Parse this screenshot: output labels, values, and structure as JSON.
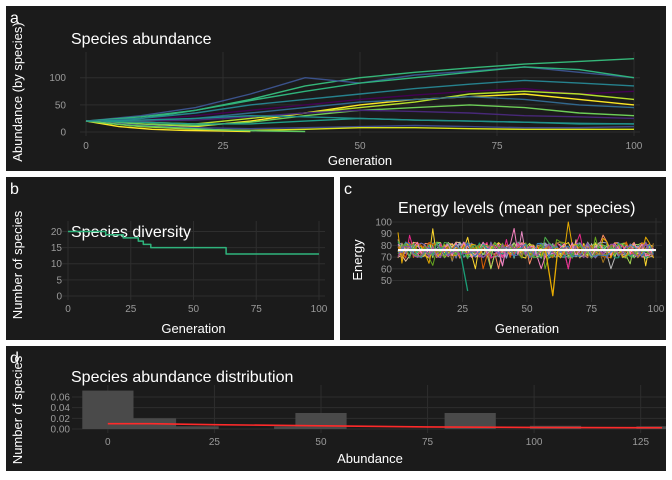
{
  "colors": {
    "background": "#1b1b1b",
    "grid": "#2e2e2e",
    "text": "#ffffff",
    "tick": "#9a9a9a"
  },
  "chart_data": [
    {
      "panel": "a",
      "type": "line",
      "title": "Species abundance",
      "xlabel": "Generation",
      "ylabel": "Abundance (by species)",
      "xlim": [
        0,
        100
      ],
      "ylim": [
        0,
        140
      ],
      "xticks": [
        "0",
        "25",
        "50",
        "75",
        "100"
      ],
      "yticks": [
        "0",
        "50",
        "100"
      ],
      "grid": true,
      "series": [
        {
          "color": "#35b779",
          "x": [
            0,
            10,
            20,
            30,
            40,
            50,
            60,
            70,
            80,
            90,
            100
          ],
          "y": [
            20,
            25,
            40,
            60,
            85,
            100,
            110,
            118,
            125,
            130,
            135
          ]
        },
        {
          "color": "#3b528b",
          "x": [
            0,
            10,
            20,
            30,
            40,
            50,
            60,
            70,
            80,
            90,
            100
          ],
          "y": [
            20,
            30,
            45,
            70,
            100,
            90,
            105,
            112,
            120,
            110,
            100
          ]
        },
        {
          "color": "#2fb47c",
          "x": [
            0,
            10,
            20,
            30,
            40,
            50,
            60,
            70,
            80,
            90,
            100
          ],
          "y": [
            20,
            28,
            40,
            58,
            75,
            90,
            100,
            110,
            120,
            115,
            100
          ]
        },
        {
          "color": "#26828e",
          "x": [
            0,
            10,
            20,
            30,
            40,
            50,
            60,
            70,
            80,
            90,
            100
          ],
          "y": [
            20,
            25,
            35,
            50,
            60,
            70,
            80,
            88,
            95,
            90,
            85
          ]
        },
        {
          "color": "#440154",
          "x": [
            0,
            10,
            20,
            30,
            40,
            50,
            60,
            70,
            80,
            90,
            100
          ],
          "y": [
            20,
            22,
            30,
            40,
            50,
            60,
            68,
            75,
            80,
            70,
            75
          ]
        },
        {
          "color": "#fde725",
          "x": [
            0,
            10,
            20,
            30,
            40,
            50,
            60,
            70,
            80,
            90,
            100
          ],
          "y": [
            20,
            15,
            10,
            20,
            35,
            50,
            60,
            65,
            70,
            60,
            50
          ]
        },
        {
          "color": "#b5de2b",
          "x": [
            0,
            10,
            20,
            30,
            40,
            50,
            60,
            70,
            80,
            90,
            100
          ],
          "y": [
            20,
            18,
            15,
            25,
            35,
            45,
            55,
            70,
            75,
            70,
            60
          ]
        },
        {
          "color": "#31688e",
          "x": [
            0,
            10,
            20,
            30,
            40,
            50,
            60,
            70,
            80,
            90,
            100
          ],
          "y": [
            20,
            20,
            25,
            35,
            45,
            55,
            60,
            65,
            60,
            50,
            45
          ]
        },
        {
          "color": "#6ece58",
          "x": [
            0,
            10,
            20,
            30,
            40,
            50,
            60,
            70,
            80,
            90,
            100
          ],
          "y": [
            20,
            15,
            12,
            18,
            30,
            40,
            45,
            50,
            45,
            35,
            30
          ]
        },
        {
          "color": "#482878",
          "x": [
            0,
            10,
            20,
            30,
            40,
            50,
            60,
            70,
            80,
            90,
            100
          ],
          "y": [
            20,
            20,
            22,
            28,
            35,
            40,
            38,
            35,
            30,
            28,
            25
          ]
        },
        {
          "color": "#1f9e89",
          "x": [
            0,
            10,
            20,
            30,
            40,
            50,
            60,
            70,
            80,
            90,
            100
          ],
          "y": [
            20,
            18,
            15,
            15,
            20,
            25,
            22,
            20,
            18,
            15,
            15
          ]
        },
        {
          "color": "#3e4989",
          "x": [
            0,
            10,
            20,
            30,
            40,
            50,
            60,
            70,
            80,
            90,
            100
          ],
          "y": [
            20,
            12,
            8,
            6,
            8,
            10,
            12,
            10,
            8,
            8,
            10
          ]
        },
        {
          "color": "#d8e219",
          "x": [
            0,
            10,
            20,
            30,
            40,
            50,
            60,
            70,
            80,
            90,
            100
          ],
          "y": [
            20,
            10,
            5,
            3,
            5,
            8,
            8,
            6,
            5,
            5,
            5
          ]
        },
        {
          "color": "#fde725",
          "x": [
            0,
            6,
            12,
            18,
            24,
            30
          ],
          "y": [
            20,
            10,
            5,
            3,
            2,
            1
          ]
        },
        {
          "color": "#5ec962",
          "x": [
            0,
            8,
            16,
            24,
            32,
            40
          ],
          "y": [
            20,
            12,
            8,
            4,
            2,
            1
          ]
        },
        {
          "color": "#21918c",
          "x": [
            0,
            10,
            20,
            30,
            40,
            50,
            60,
            70,
            80,
            90,
            100
          ],
          "y": [
            20,
            22,
            25,
            30,
            28,
            25,
            22,
            20,
            18,
            16,
            15
          ]
        }
      ]
    },
    {
      "panel": "b",
      "type": "line",
      "title": "Species diversity",
      "xlabel": "Generation",
      "ylabel": "Number of species",
      "xlim": [
        0,
        100
      ],
      "ylim": [
        0,
        22
      ],
      "xticks": [
        "0",
        "25",
        "50",
        "75",
        "100"
      ],
      "yticks": [
        "0",
        "5",
        "10",
        "15",
        "20"
      ],
      "grid": true,
      "series": [
        {
          "color": "#2fb47c",
          "x": [
            0,
            15,
            15,
            22,
            22,
            28,
            28,
            30,
            30,
            33,
            33,
            63,
            63,
            100
          ],
          "y": [
            20,
            20,
            19,
            19,
            18,
            18,
            17,
            17,
            16,
            16,
            15,
            15,
            13,
            13
          ]
        }
      ]
    },
    {
      "panel": "c",
      "type": "line",
      "title": "Energy levels (mean per species)",
      "xlabel": "Generation",
      "ylabel": "Energy",
      "xlim": [
        0,
        100
      ],
      "ylim": [
        35,
        100
      ],
      "xticks": [
        "25",
        "50",
        "75",
        "100"
      ],
      "yticks": [
        "50",
        "60",
        "70",
        "80",
        "90",
        "100"
      ],
      "grid": true,
      "noise_series_colors": [
        "#b8b8b8",
        "#e78ac3",
        "#66c2a5",
        "#fc8d62",
        "#8da0cb",
        "#a6d854",
        "#ffd92f",
        "#e5c494",
        "#e7298a",
        "#1b9e77",
        "#d95f02",
        "#7570b3",
        "#66a61e",
        "#e6ab02",
        "#a6761d",
        "#f781bf",
        "#377eb8",
        "#4daf4a",
        "#984ea3"
      ],
      "events": [
        {
          "color": "#1b9e77",
          "x": [
            24,
            27
          ],
          "y": [
            76,
            41
          ]
        },
        {
          "color": "#e6ab02",
          "x": [
            57,
            60,
            62
          ],
          "y": [
            78,
            37,
            78
          ]
        }
      ],
      "mean_line": {
        "color": "#ffffff",
        "y": 76
      }
    },
    {
      "panel": "d",
      "type": "bar",
      "title": "Species abundance distribution",
      "xlabel": "Abundance",
      "ylabel": "Number of species",
      "xlim": [
        -7,
        130
      ],
      "ylim": [
        0,
        0.075
      ],
      "xticks": [
        "0",
        "25",
        "50",
        "75",
        "100",
        "125"
      ],
      "yticks": [
        "0.00",
        "0.02",
        "0.04",
        "0.06"
      ],
      "bar_color": "#4a4a4a",
      "bars": [
        {
          "x": 0,
          "value": 0.072
        },
        {
          "x": 10,
          "value": 0.02
        },
        {
          "x": 20,
          "value": 0.005
        },
        {
          "x": 45,
          "value": 0.005
        },
        {
          "x": 50,
          "value": 0.03
        },
        {
          "x": 85,
          "value": 0.03
        },
        {
          "x": 105,
          "value": 0.006
        },
        {
          "x": 130,
          "value": 0.005
        }
      ],
      "density_color": "#ff2a2a",
      "density": {
        "x": [
          0,
          10,
          25,
          50,
          75,
          100,
          125,
          130
        ],
        "y": [
          0.01,
          0.01,
          0.008,
          0.006,
          0.004,
          0.003,
          0.0025,
          0.0025
        ]
      }
    }
  ],
  "panel_labels": {
    "a": "a",
    "b": "b",
    "c": "c",
    "d": "d"
  }
}
